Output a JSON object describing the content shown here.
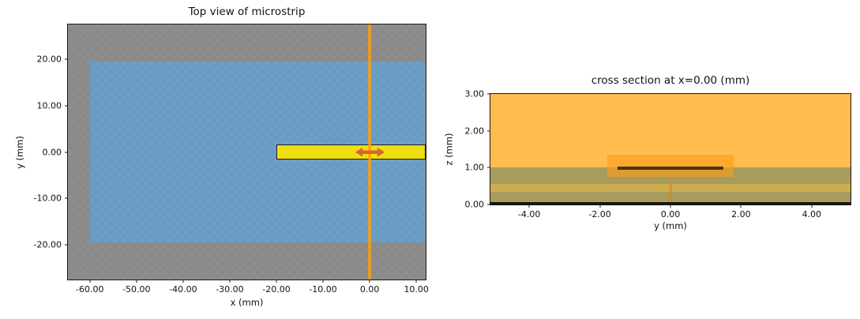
{
  "figure": {
    "background": "#ffffff"
  },
  "chart_data": [
    {
      "type": "area",
      "title": "Top view of microstrip",
      "xlabel": "x (mm)",
      "ylabel": "y (mm)",
      "xlim": [
        -64.7,
        12.0
      ],
      "ylim": [
        -27.5,
        27.5
      ],
      "grid": false,
      "legend": "none",
      "xticks": [
        {
          "v": -60,
          "label": "-60.00"
        },
        {
          "v": -50,
          "label": "-50.00"
        },
        {
          "v": -40,
          "label": "-40.00"
        },
        {
          "v": -30,
          "label": "-30.00"
        },
        {
          "v": -20,
          "label": "-20.00"
        },
        {
          "v": -10,
          "label": "-10.00"
        },
        {
          "v": 0,
          "label": "0.00"
        },
        {
          "v": 10,
          "label": "10.00"
        }
      ],
      "yticks": [
        {
          "v": 20,
          "label": "20.00"
        },
        {
          "v": 10,
          "label": "10.00"
        },
        {
          "v": 0,
          "label": "0.00"
        },
        {
          "v": -10,
          "label": "-10.00"
        },
        {
          "v": -20,
          "label": "-20.00"
        }
      ],
      "regions": [
        {
          "name": "boundary-hatched-region",
          "x": [
            -64.7,
            12.0
          ],
          "y": [
            -27.5,
            27.5
          ],
          "color": "#8d8d8d",
          "hatch": true
        },
        {
          "name": "substrate-top-region",
          "x": [
            -60.0,
            12.0
          ],
          "y": [
            -19.5,
            19.5
          ],
          "color": "#6d9ec6"
        },
        {
          "name": "hatch-overlay",
          "x": [
            -64.7,
            12.0
          ],
          "y": [
            -27.5,
            27.5
          ],
          "color": "transparent",
          "hatch_faint": true
        },
        {
          "name": "microstrip-trace",
          "x": [
            -20.0,
            12.0
          ],
          "y": [
            -1.6,
            1.6
          ],
          "color": "#f0df10",
          "border": "#1c1c1c"
        },
        {
          "name": "cross-section-marker-line",
          "x": [
            -0.4,
            0.4
          ],
          "y": [
            -27.5,
            27.5
          ],
          "color": "rgba(255,160,10,0.78)"
        },
        {
          "name": "port-excitation-arrow",
          "shape": "double-arrow",
          "x": [
            -3.3,
            3.3
          ],
          "y": [
            -1.15,
            1.15
          ],
          "color": "rgba(211,84,52,0.88)"
        }
      ]
    },
    {
      "type": "area",
      "title": "cross section at x=0.00 (mm)",
      "xlabel": "y (mm)",
      "ylabel": "z (mm)",
      "xlim": [
        -5.1,
        5.1
      ],
      "ylim": [
        0,
        3
      ],
      "grid": false,
      "legend": "none",
      "xticks": [
        {
          "v": -4,
          "label": "-4.00"
        },
        {
          "v": -2,
          "label": "-2.00"
        },
        {
          "v": 0,
          "label": "0.00"
        },
        {
          "v": 2,
          "label": "2.00"
        },
        {
          "v": 4,
          "label": "4.00"
        }
      ],
      "yticks": [
        {
          "v": 3,
          "label": "3.00"
        },
        {
          "v": 2,
          "label": "2.00"
        },
        {
          "v": 1,
          "label": "1.00"
        },
        {
          "v": 0,
          "label": "0.00"
        }
      ],
      "regions": [
        {
          "name": "air-box-region",
          "x": [
            -5.1,
            5.1
          ],
          "y": [
            0,
            3
          ],
          "color": "#ffbc4f"
        },
        {
          "name": "substrate-region",
          "x": [
            -5.1,
            5.1
          ],
          "y": [
            0,
            1
          ],
          "color": "#a79b5e",
          "hatch_faint": true
        },
        {
          "name": "dielectric-layer-band",
          "x": [
            -5.1,
            5.1
          ],
          "y": [
            0.35,
            0.55
          ],
          "color": "#cdad52"
        },
        {
          "name": "feed-marker-line",
          "x": [
            -0.05,
            0.05
          ],
          "y": [
            0,
            0.6
          ],
          "color": "rgba(222,132,22,0.55)"
        },
        {
          "name": "ground-plane-line",
          "x": [
            -5.1,
            5.1
          ],
          "y": [
            0,
            0.06
          ],
          "color": "#141414"
        },
        {
          "name": "port-region-box",
          "x": [
            -1.8,
            1.8
          ],
          "y": [
            0.75,
            1.35
          ],
          "color": "rgba(250,158,28,0.65)"
        },
        {
          "name": "microstrip-conductor-line",
          "x": [
            -1.5,
            1.5
          ],
          "y": [
            0.95,
            1.03
          ],
          "color": "#45380f"
        }
      ]
    }
  ]
}
